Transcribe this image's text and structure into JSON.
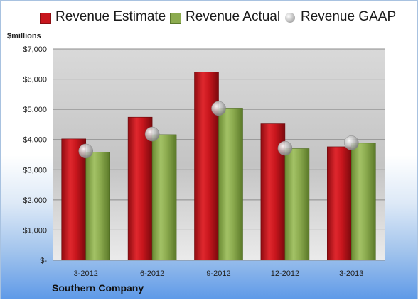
{
  "chart_data": {
    "type": "bar",
    "unit_label": "$millions",
    "company": "Southern Company",
    "categories": [
      "3-2012",
      "6-2012",
      "9-2012",
      "12-2012",
      "3-2013"
    ],
    "series": [
      {
        "name": "Revenue Estimate",
        "type": "bar",
        "color": "#c8161d",
        "values": [
          4020,
          4740,
          6240,
          4520,
          3760
        ]
      },
      {
        "name": "Revenue Actual",
        "type": "bar",
        "color": "#8cab4f",
        "values": [
          3580,
          4160,
          5040,
          3700,
          3880
        ]
      },
      {
        "name": "Revenue GAAP",
        "type": "marker",
        "color": "#b8b8b8",
        "values": [
          3620,
          4180,
          5030,
          3710,
          3890
        ]
      }
    ],
    "y_ticks": [
      "$-",
      "$1,000",
      "$2,000",
      "$3,000",
      "$4,000",
      "$5,000",
      "$6,000",
      "$7,000"
    ],
    "ylim": [
      0,
      7000
    ],
    "y_step": 1000,
    "grid": true,
    "legend_position": "top"
  }
}
